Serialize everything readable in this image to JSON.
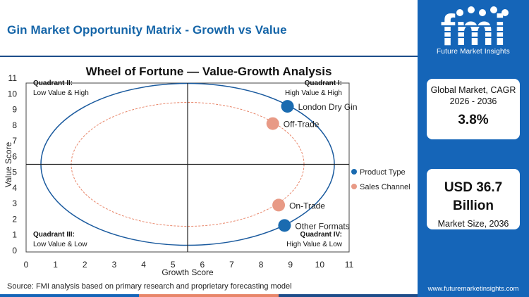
{
  "header": {
    "title": "Gin Market Opportunity Matrix - Growth vs Value"
  },
  "chart_data": {
    "type": "scatter",
    "title": "Wheel of Fortune — Value-Growth Analysis",
    "xlabel": "Growth Score",
    "ylabel": "Value Score",
    "xlim": [
      0,
      11
    ],
    "ylim": [
      0,
      11
    ],
    "xticks": [
      "0",
      "1",
      "2",
      "3",
      "4",
      "5",
      "6",
      "7",
      "8",
      "9",
      "10",
      "11"
    ],
    "yticks": [
      "0",
      "1",
      "2",
      "3",
      "4",
      "5",
      "6",
      "7",
      "8",
      "9",
      "10",
      "11"
    ],
    "divider_x": 5.5,
    "divider_y": 5.5,
    "grid": false,
    "legend_position": "right",
    "quadrants": [
      {
        "name": "Quadrant II:",
        "desc": "Low Value & High"
      },
      {
        "name": "Quadrant I:",
        "desc": "High Value & High"
      },
      {
        "name": "Quadrant III:",
        "desc": "Low Value & Low"
      },
      {
        "name": "Quadrant IV:",
        "desc": "High Value & Low"
      }
    ],
    "series": [
      {
        "name": "Product Type",
        "color": "#1a6bb0",
        "points": [
          {
            "label": "London Dry Gin",
            "x": 8.9,
            "y": 9.2
          },
          {
            "label": "Other Formats",
            "x": 8.8,
            "y": 1.6
          }
        ]
      },
      {
        "name": "Sales Channel",
        "color": "#e89a86",
        "points": [
          {
            "label": "Off-Trade",
            "x": 8.4,
            "y": 8.1
          },
          {
            "label": "On-Trade",
            "x": 8.6,
            "y": 2.9
          }
        ]
      }
    ]
  },
  "source": "Source: FMI analysis based on primary research and proprietary forecasting model",
  "sidebar": {
    "brand": "fmi",
    "tagline": "Future Market Insights",
    "cagr_label": "Global Market, CAGR 2026 - 2036",
    "cagr_value": "3.8%",
    "size_value_line1": "USD 36.7",
    "size_value_line2": "Billion",
    "size_label": "Market Size, 2036",
    "website": "www.futuremarketinsights.com"
  },
  "colors": {
    "brand_blue": "#1565b8",
    "title_blue": "#1565a8",
    "inner_ellipse": "#e8866a",
    "outer_ellipse": "#1a5a9e",
    "bottom_bar": [
      "#1565b8",
      "#e8866a",
      "#1d4d8a"
    ]
  }
}
